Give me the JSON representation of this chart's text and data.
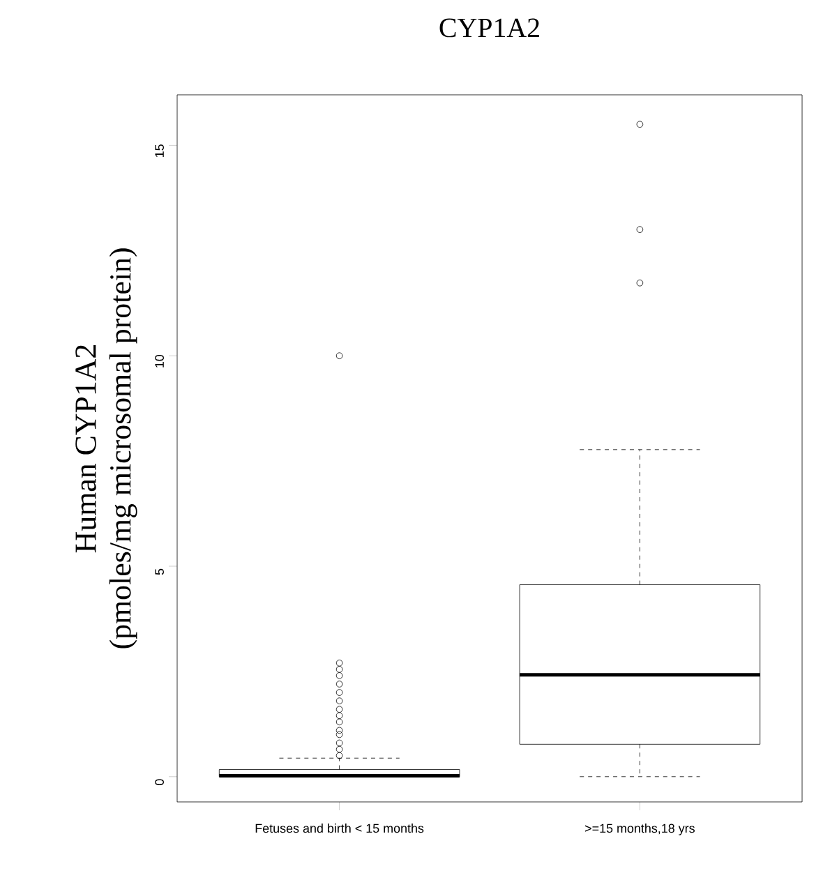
{
  "chart_data": {
    "type": "box",
    "title": "CYP1A2",
    "ylabel": "Human CYP1A2\n(pmoles/mg microsomal protein)",
    "categories": [
      "Fetuses and birth < 15 months",
      ">=15 months,18 yrs"
    ],
    "boxes": [
      {
        "low": 0,
        "q1": 0,
        "median": 0.02,
        "q3": 0.17,
        "high": 0.44,
        "outliers": [
          0.5,
          0.65,
          0.8,
          1.0,
          1.1,
          1.3,
          1.45,
          1.6,
          1.8,
          2.0,
          2.2,
          2.4,
          2.55,
          2.7,
          10.0
        ]
      },
      {
        "low": 0,
        "q1": 0.77,
        "median": 2.42,
        "q3": 4.56,
        "high": 7.77,
        "outliers": [
          11.73,
          13.0,
          15.5
        ]
      }
    ],
    "ylim": [
      -0.6,
      16.2
    ],
    "yticks": [
      0,
      5,
      10,
      15
    ],
    "grid": false,
    "marker": "circle",
    "line_style": "dashed"
  }
}
